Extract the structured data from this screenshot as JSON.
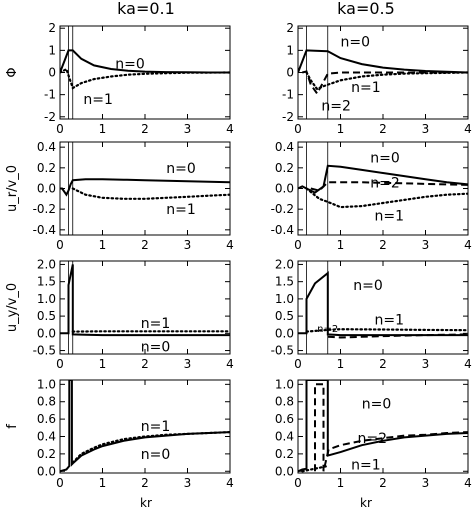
{
  "figure": {
    "column_titles": [
      "ka=0.1",
      "ka=0.5"
    ],
    "x_axis_label": "kr"
  },
  "chart_data": [
    {
      "type": "line",
      "row": 0,
      "col": 0,
      "ylabel": "Φ",
      "xlim": [
        0,
        4
      ],
      "ylim": [
        -2.1,
        2.1
      ],
      "xticks": [
        "0",
        "1",
        "2",
        "3",
        "4"
      ],
      "yticks": [
        {
          "v": 2,
          "t": "2"
        },
        {
          "v": 1,
          "t": "1"
        },
        {
          "v": 0,
          "t": "0"
        },
        {
          "v": -1,
          "t": "-1"
        },
        {
          "v": -2,
          "t": "-2"
        }
      ],
      "vlines": [
        0.2,
        0.3
      ],
      "series": [
        {
          "name": "n=0",
          "style": "solid",
          "x": [
            0,
            0.1,
            0.2,
            0.3,
            0.5,
            0.8,
            1.2,
            1.6,
            2.0,
            2.5,
            3.0,
            3.5,
            4.0
          ],
          "y": [
            0,
            0.5,
            1.0,
            1.0,
            0.62,
            0.32,
            0.16,
            0.08,
            0.04,
            0.02,
            0.01,
            0.0,
            0.0
          ]
        },
        {
          "name": "n=1",
          "style": "dotted",
          "x": [
            0,
            0.15,
            0.3,
            0.5,
            0.8,
            1.2,
            1.6,
            2.0,
            2.5,
            3.0,
            4.0
          ],
          "y": [
            0,
            0.15,
            -0.7,
            -0.48,
            -0.3,
            -0.18,
            -0.1,
            -0.06,
            -0.03,
            -0.01,
            0.0
          ]
        }
      ],
      "annotations": [
        {
          "text": "n=0",
          "x": 1.3,
          "y": 0.4
        },
        {
          "text": "n=1",
          "x": 0.55,
          "y": -1.2
        }
      ]
    },
    {
      "type": "line",
      "row": 0,
      "col": 1,
      "ylabel": "",
      "xlim": [
        0,
        4
      ],
      "ylim": [
        -2.1,
        2.1
      ],
      "xticks": [
        "0",
        "1",
        "2",
        "3",
        "4"
      ],
      "yticks": [
        {
          "v": 2,
          "t": "2"
        },
        {
          "v": 1,
          "t": "1"
        },
        {
          "v": 0,
          "t": "0"
        },
        {
          "v": -1,
          "t": "-1"
        },
        {
          "v": -2,
          "t": "-2"
        }
      ],
      "vlines": [
        0.2,
        0.7
      ],
      "series": [
        {
          "name": "n=0",
          "style": "solid",
          "x": [
            0,
            0.1,
            0.2,
            0.4,
            0.7,
            1.0,
            1.5,
            2.0,
            2.5,
            3.0,
            3.5,
            4.0
          ],
          "y": [
            0,
            0.5,
            1.0,
            0.98,
            0.96,
            0.65,
            0.38,
            0.22,
            0.13,
            0.07,
            0.03,
            0.0
          ]
        },
        {
          "name": "n=2",
          "style": "dashed",
          "x": [
            0.1,
            0.2,
            0.3,
            0.45,
            0.7,
            1.0,
            1.5,
            2.0,
            3.0,
            4.0
          ],
          "y": [
            0,
            0.05,
            -0.55,
            -0.95,
            -0.05,
            0.0,
            0.0,
            0.0,
            0.0,
            0.0
          ]
        },
        {
          "name": "n=1",
          "style": "dotted",
          "x": [
            0.2,
            0.3,
            0.45,
            0.6,
            0.7,
            1.0,
            1.5,
            2.0,
            2.5,
            3.0,
            4.0
          ],
          "y": [
            0,
            -0.35,
            -0.75,
            -0.62,
            -0.55,
            -0.35,
            -0.18,
            -0.1,
            -0.05,
            -0.03,
            0.0
          ]
        }
      ],
      "annotations": [
        {
          "text": "n=0",
          "x": 1.0,
          "y": 1.4
        },
        {
          "text": "n=1",
          "x": 1.25,
          "y": -0.65
        },
        {
          "text": "n=2",
          "x": 0.55,
          "y": -1.5
        }
      ]
    },
    {
      "type": "line",
      "row": 1,
      "col": 0,
      "ylabel": "u_r/v_0",
      "xlim": [
        0,
        4
      ],
      "ylim": [
        -0.45,
        0.45
      ],
      "xticks": [
        "0",
        "1",
        "2",
        "3",
        "4"
      ],
      "yticks": [
        {
          "v": 0.4,
          "t": "0.4"
        },
        {
          "v": 0.2,
          "t": "0.2"
        },
        {
          "v": 0.0,
          "t": "0.0"
        },
        {
          "v": -0.2,
          "t": "-0.2"
        },
        {
          "v": -0.4,
          "t": "-0.4"
        }
      ],
      "vlines": [
        0.2,
        0.3
      ],
      "series": [
        {
          "name": "n=0",
          "style": "solid",
          "x": [
            0,
            0.05,
            0.15,
            0.2,
            0.25,
            0.3,
            0.6,
            1.0,
            1.5,
            2.0,
            2.5,
            3.0,
            3.5,
            4.0
          ],
          "y": [
            0,
            0.0,
            -0.06,
            -0.02,
            0.04,
            0.08,
            0.09,
            0.09,
            0.085,
            0.08,
            0.075,
            0.07,
            0.065,
            0.06
          ]
        },
        {
          "name": "n=1",
          "style": "dotted",
          "x": [
            0.3,
            0.6,
            1.0,
            1.5,
            2.0,
            2.5,
            3.0,
            3.5,
            4.0
          ],
          "y": [
            0.0,
            -0.06,
            -0.09,
            -0.1,
            -0.1,
            -0.09,
            -0.08,
            -0.07,
            -0.06
          ]
        }
      ],
      "annotations": [
        {
          "text": "n=0",
          "x": 2.5,
          "y": 0.2
        },
        {
          "text": "n=1",
          "x": 2.5,
          "y": -0.2
        }
      ]
    },
    {
      "type": "line",
      "row": 1,
      "col": 1,
      "ylabel": "",
      "xlim": [
        0,
        4
      ],
      "ylim": [
        -0.45,
        0.45
      ],
      "xticks": [
        "0",
        "1",
        "2",
        "3",
        "4"
      ],
      "yticks": [
        {
          "v": 0.4,
          "t": "0.4"
        },
        {
          "v": 0.2,
          "t": "0.2"
        },
        {
          "v": 0.0,
          "t": "0.0"
        },
        {
          "v": -0.2,
          "t": "-0.2"
        },
        {
          "v": -0.4,
          "t": "-0.4"
        }
      ],
      "vlines": [
        0.2,
        0.7
      ],
      "series": [
        {
          "name": "n=0",
          "style": "solid",
          "x": [
            0,
            0.1,
            0.2,
            0.4,
            0.6,
            0.7,
            1.0,
            1.5,
            2.0,
            2.5,
            3.0,
            3.5,
            4.0
          ],
          "y": [
            0,
            0.02,
            0.0,
            -0.04,
            0.02,
            0.22,
            0.21,
            0.18,
            0.15,
            0.12,
            0.09,
            0.06,
            0.04
          ]
        },
        {
          "name": "n=2",
          "style": "dashed",
          "x": [
            0.3,
            0.5,
            0.7,
            1.0,
            1.5,
            2.0,
            2.5,
            3.0,
            3.5,
            4.0
          ],
          "y": [
            0.0,
            -0.02,
            0.06,
            0.06,
            0.06,
            0.055,
            0.05,
            0.045,
            0.04,
            0.035
          ]
        },
        {
          "name": "n=1",
          "style": "dotted",
          "x": [
            0.2,
            0.5,
            0.7,
            1.0,
            1.5,
            2.0,
            2.5,
            3.0,
            3.5,
            4.0
          ],
          "y": [
            0.0,
            -0.1,
            -0.13,
            -0.18,
            -0.17,
            -0.14,
            -0.11,
            -0.08,
            -0.06,
            -0.05
          ]
        }
      ],
      "annotations": [
        {
          "text": "n=0",
          "x": 1.7,
          "y": 0.3
        },
        {
          "text": "n=2",
          "x": 1.7,
          "y": 0.06
        },
        {
          "text": "n=1",
          "x": 1.8,
          "y": -0.26
        }
      ]
    },
    {
      "type": "line",
      "row": 2,
      "col": 0,
      "ylabel": "u_y/v_0",
      "xlim": [
        0,
        4
      ],
      "ylim": [
        -0.6,
        2.1
      ],
      "xticks": [
        "0",
        "1",
        "2",
        "3",
        "4"
      ],
      "yticks": [
        {
          "v": 2.0,
          "t": "2.0"
        },
        {
          "v": 1.5,
          "t": "1.5"
        },
        {
          "v": 1.0,
          "t": "1.0"
        },
        {
          "v": 0.5,
          "t": "0.5"
        },
        {
          "v": 0.0,
          "t": "0.0"
        },
        {
          "v": -0.5,
          "t": "-0.5"
        }
      ],
      "vlines": [
        0.2,
        0.3
      ],
      "series": [
        {
          "name": "n=0",
          "style": "solid",
          "x": [
            0,
            0.2,
            0.2,
            0.3,
            0.3,
            0.6,
            1.0,
            2.0,
            3.0,
            4.0
          ],
          "y": [
            0,
            0,
            1.4,
            2.0,
            -0.03,
            -0.04,
            -0.05,
            -0.05,
            -0.05,
            -0.05
          ]
        },
        {
          "name": "n=1",
          "style": "dotted",
          "x": [
            0.3,
            1.0,
            2.0,
            3.0,
            4.0
          ],
          "y": [
            0.05,
            0.06,
            0.06,
            0.06,
            0.06
          ]
        }
      ],
      "annotations": [
        {
          "text": "n=1",
          "x": 1.9,
          "y": 0.3
        },
        {
          "text": "n=0",
          "x": 1.9,
          "y": -0.38
        }
      ]
    },
    {
      "type": "line",
      "row": 2,
      "col": 1,
      "ylabel": "",
      "xlim": [
        0,
        4
      ],
      "ylim": [
        -0.6,
        2.1
      ],
      "xticks": [
        "0",
        "1",
        "2",
        "3",
        "4"
      ],
      "yticks": [
        {
          "v": 2.0,
          "t": "2.0"
        },
        {
          "v": 1.5,
          "t": "1.5"
        },
        {
          "v": 1.0,
          "t": "1.0"
        },
        {
          "v": 0.5,
          "t": "0.5"
        },
        {
          "v": 0.0,
          "t": "0.0"
        },
        {
          "v": -0.5,
          "t": "-0.5"
        }
      ],
      "vlines": [
        0.2,
        0.7
      ],
      "series": [
        {
          "name": "n=0",
          "style": "solid",
          "x": [
            0,
            0.2,
            0.2,
            0.4,
            0.7,
            0.7,
            1.0,
            2.0,
            3.0,
            4.0
          ],
          "y": [
            0,
            0,
            1.0,
            1.45,
            1.75,
            -0.03,
            -0.05,
            -0.05,
            -0.05,
            -0.05
          ]
        },
        {
          "name": "n=2",
          "style": "dashed",
          "x": [
            0.7,
            1.0,
            1.5,
            2.0,
            3.0,
            4.0
          ],
          "y": [
            -0.1,
            -0.12,
            -0.1,
            -0.08,
            -0.05,
            -0.03
          ]
        },
        {
          "name": "n=1",
          "style": "dotted",
          "x": [
            0.2,
            0.7,
            1.0,
            2.0,
            3.0,
            4.0
          ],
          "y": [
            0.05,
            0.1,
            0.12,
            0.11,
            0.1,
            0.09
          ]
        }
      ],
      "annotations": [
        {
          "text": "n=0",
          "x": 1.3,
          "y": 1.4
        },
        {
          "text": "n=1",
          "x": 1.8,
          "y": 0.4
        },
        {
          "text": "n=2",
          "x": 0.45,
          "y": 0.18,
          "small": true
        }
      ]
    },
    {
      "type": "line",
      "row": 3,
      "col": 0,
      "ylabel": "f",
      "xlim": [
        0,
        4
      ],
      "ylim": [
        -0.02,
        1.05
      ],
      "xticks": [
        "0",
        "1",
        "2",
        "3",
        "4"
      ],
      "yticks": [
        {
          "v": 1.0,
          "t": "1.0"
        },
        {
          "v": 0.8,
          "t": "0.8"
        },
        {
          "v": 0.6,
          "t": "0.6"
        },
        {
          "v": 0.4,
          "t": "0.4"
        },
        {
          "v": 0.2,
          "t": "0.2"
        },
        {
          "v": 0.0,
          "t": "0.0"
        }
      ],
      "vlines": [],
      "series": [
        {
          "name": "n=0",
          "style": "solid",
          "x": [
            0,
            0.15,
            0.22,
            0.22,
            0.25,
            0.28,
            0.28,
            0.32,
            0.5,
            0.8,
            1.0,
            1.5,
            2.0,
            2.5,
            3.0,
            3.5,
            4.0
          ],
          "y": [
            0,
            0.02,
            0.06,
            1.05,
            1.05,
            1.05,
            0.08,
            0.1,
            0.18,
            0.25,
            0.29,
            0.35,
            0.39,
            0.41,
            0.43,
            0.44,
            0.45
          ]
        },
        {
          "name": "n=1",
          "style": "dotted",
          "x": [
            0.3,
            0.5,
            0.8,
            1.0,
            1.5,
            2.0,
            2.5,
            3.0,
            3.5,
            4.0
          ],
          "y": [
            0.1,
            0.2,
            0.27,
            0.31,
            0.37,
            0.4,
            0.42,
            0.43,
            0.44,
            0.45
          ]
        }
      ],
      "annotations": [
        {
          "text": "n=1",
          "x": 1.9,
          "y": 0.52
        },
        {
          "text": "n=0",
          "x": 1.9,
          "y": 0.2
        }
      ]
    },
    {
      "type": "line",
      "row": 3,
      "col": 1,
      "ylabel": "",
      "xlim": [
        0,
        4
      ],
      "ylim": [
        -0.02,
        1.05
      ],
      "xticks": [
        "0",
        "1",
        "2",
        "3",
        "4"
      ],
      "yticks": [
        {
          "v": 1.0,
          "t": "1.0"
        },
        {
          "v": 0.8,
          "t": "0.8"
        },
        {
          "v": 0.6,
          "t": "0.6"
        },
        {
          "v": 0.4,
          "t": "0.4"
        },
        {
          "v": 0.2,
          "t": "0.2"
        },
        {
          "v": 0.0,
          "t": "0.0"
        }
      ],
      "vlines": [],
      "series": [
        {
          "name": "n=0",
          "style": "solid",
          "x": [
            0,
            0.1,
            0.2,
            0.2,
            0.7,
            0.7,
            1.0,
            1.5,
            2.0,
            2.5,
            3.0,
            3.5,
            4.0
          ],
          "y": [
            0,
            0.02,
            0.03,
            1.05,
            1.05,
            0.18,
            0.22,
            0.3,
            0.35,
            0.39,
            0.41,
            0.43,
            0.44
          ]
        },
        {
          "name": "n=2",
          "style": "dashed",
          "x": [
            0.4,
            0.4,
            0.6,
            0.6,
            0.72,
            1.0,
            1.5,
            2.0,
            2.5,
            3.0,
            3.5,
            4.0
          ],
          "y": [
            0.0,
            1.0,
            1.0,
            0.0,
            0.25,
            0.3,
            0.35,
            0.38,
            0.41,
            0.42,
            0.44,
            0.45
          ]
        },
        {
          "name": "n=1",
          "style": "dotted",
          "x": [
            0.1,
            0.3,
            0.5,
            0.7
          ],
          "y": [
            0.0,
            0.02,
            0.04,
            0.06
          ]
        }
      ],
      "annotations": [
        {
          "text": "n=0",
          "x": 1.5,
          "y": 0.78
        },
        {
          "text": "n=2",
          "x": 1.4,
          "y": 0.38
        },
        {
          "text": "n=1",
          "x": 1.25,
          "y": 0.08
        }
      ]
    }
  ]
}
